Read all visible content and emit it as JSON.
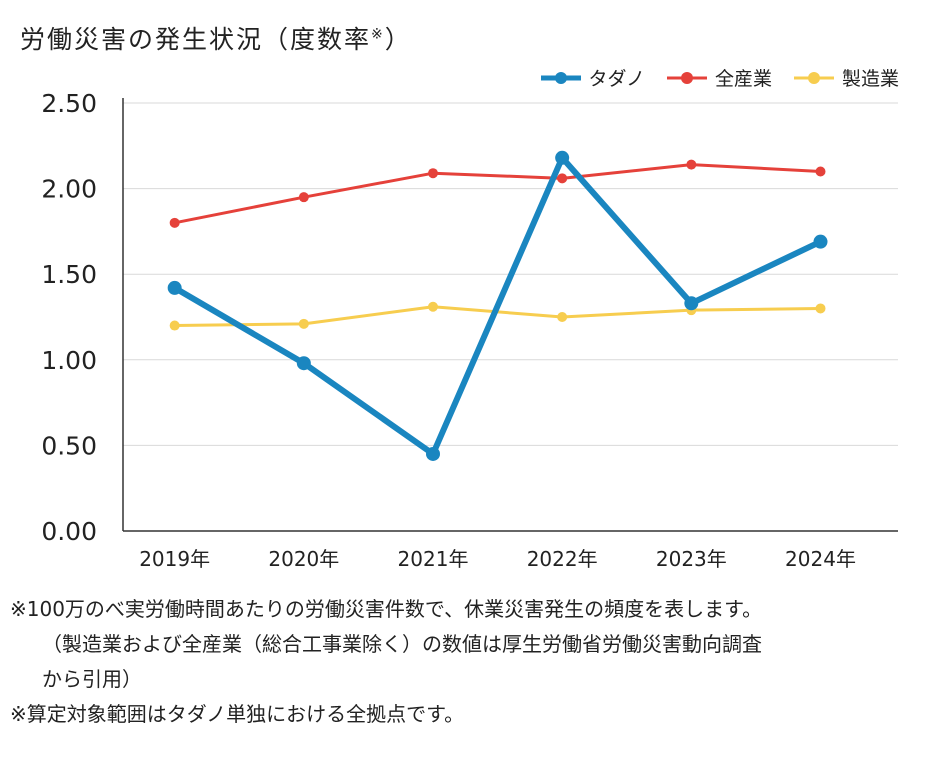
{
  "chart_data": {
    "type": "line",
    "title": "労働災害の発生状況（度数率",
    "title_mark": "※",
    "title_close": "）",
    "categories": [
      "2019年",
      "2020年",
      "2021年",
      "2022年",
      "2023年",
      "2024年"
    ],
    "ylim": [
      0,
      2.5
    ],
    "yticks": [
      "0.00",
      "0.50",
      "1.00",
      "1.50",
      "2.00",
      "2.50"
    ],
    "grid": true,
    "legend_position": "top-right",
    "series": [
      {
        "name": "タダノ",
        "color": "#1a86c0",
        "values": [
          1.42,
          0.98,
          0.45,
          2.18,
          1.33,
          1.69
        ]
      },
      {
        "name": "全産業",
        "color": "#e5413a",
        "values": [
          1.8,
          1.95,
          2.09,
          2.06,
          2.14,
          2.1
        ]
      },
      {
        "name": "製造業",
        "color": "#f7cd4f",
        "values": [
          1.2,
          1.21,
          1.31,
          1.25,
          1.29,
          1.3
        ]
      }
    ]
  },
  "notes": [
    "※100万のべ実労働時間あたりの労働災害件数で、休業災害発生の頻度を表します。",
    "（製造業および全産業（総合工事業除く）の数値は厚生労働省労働災害動向調査",
    "から引用）",
    "※算定対象範囲はタダノ単独における全拠点です。"
  ]
}
